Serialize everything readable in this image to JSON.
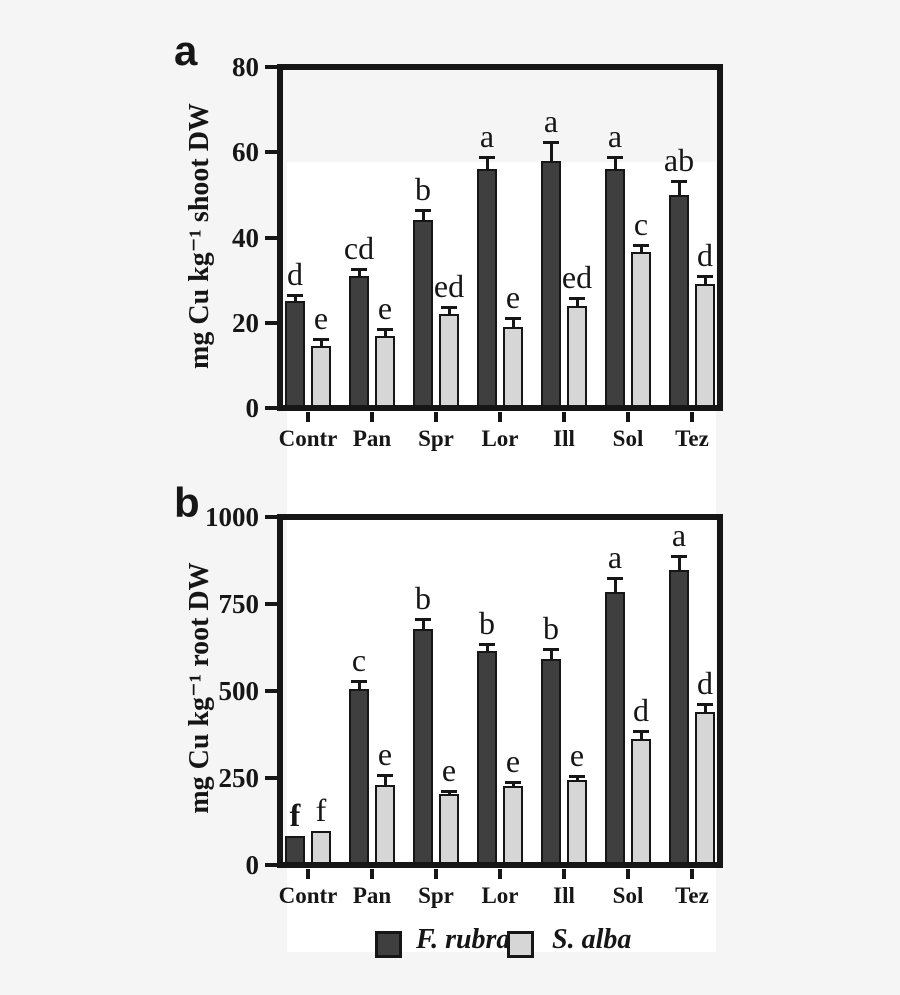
{
  "colors": {
    "page_bg": "#f5f5f6",
    "panel_bg": "#ffffff",
    "f_rubra_fill": "#3f3f3f",
    "s_alba_fill": "#d6d6d6",
    "line": "#161616"
  },
  "legend": {
    "items": [
      {
        "label": "F. rubra",
        "color_key": "f_rubra_fill"
      },
      {
        "label": "S. alba",
        "color_key": "s_alba_fill"
      }
    ]
  },
  "chart_data": [
    {
      "id": "a",
      "type": "bar",
      "panel_label": "a",
      "title": "",
      "xlabel": "",
      "ylabel": "mg Cu kg⁻¹ shoot DW",
      "ylim": [
        0,
        80
      ],
      "yticks": [
        "0",
        "20",
        "40",
        "60",
        "80"
      ],
      "grid": false,
      "legend_position": "shared-bottom",
      "categories": [
        "Contr",
        "Pan",
        "Spr",
        "Lor",
        "Ill",
        "Sol",
        "Tez"
      ],
      "series": [
        {
          "name": "F. rubra",
          "values": [
            25,
            31,
            44,
            56,
            58,
            56,
            50
          ],
          "errors": [
            1.6,
            1.6,
            2.5,
            3,
            4.5,
            3,
            3.2
          ],
          "letters": [
            "d",
            "cd",
            "b",
            "a",
            "a",
            "a",
            "ab"
          ],
          "letters_bold": [
            false,
            false,
            false,
            false,
            false,
            false,
            false
          ]
        },
        {
          "name": "S. alba",
          "values": [
            14.5,
            17,
            22,
            19,
            24,
            36.5,
            29
          ],
          "errors": [
            1.6,
            1.6,
            1.8,
            2,
            1.8,
            1.8,
            2
          ],
          "letters": [
            "e",
            "e",
            "ed",
            "e",
            "ed",
            "c",
            "d"
          ],
          "letters_bold": [
            false,
            false,
            false,
            false,
            false,
            false,
            false
          ]
        }
      ]
    },
    {
      "id": "b",
      "type": "bar",
      "panel_label": "b",
      "title": "",
      "xlabel": "",
      "ylabel": "mg Cu kg⁻¹ root DW",
      "ylim": [
        0,
        1000
      ],
      "yticks": [
        "0",
        "250",
        "500",
        "750",
        "1000"
      ],
      "grid": false,
      "legend_position": "shared-bottom",
      "categories": [
        "Contr",
        "Pan",
        "Spr",
        "Lor",
        "Ill",
        "Sol",
        "Tez"
      ],
      "series": [
        {
          "name": "F. rubra",
          "values": [
            84,
            506,
            677,
            614,
            592,
            785,
            847
          ],
          "errors": [
            0,
            23,
            29,
            20,
            29,
            40,
            40
          ],
          "letters": [
            "f",
            "c",
            "b",
            "b",
            "b",
            "a",
            "a"
          ],
          "letters_bold": [
            true,
            false,
            false,
            false,
            false,
            false,
            false
          ]
        },
        {
          "name": "S. alba",
          "values": [
            97,
            230,
            203,
            227,
            244,
            361,
            439
          ],
          "errors": [
            0,
            30,
            10,
            12,
            12,
            23,
            23
          ],
          "letters": [
            "f",
            "e",
            "e",
            "e",
            "e",
            "d",
            "d"
          ],
          "letters_bold": [
            false,
            false,
            false,
            false,
            false,
            false,
            false
          ]
        }
      ]
    }
  ]
}
